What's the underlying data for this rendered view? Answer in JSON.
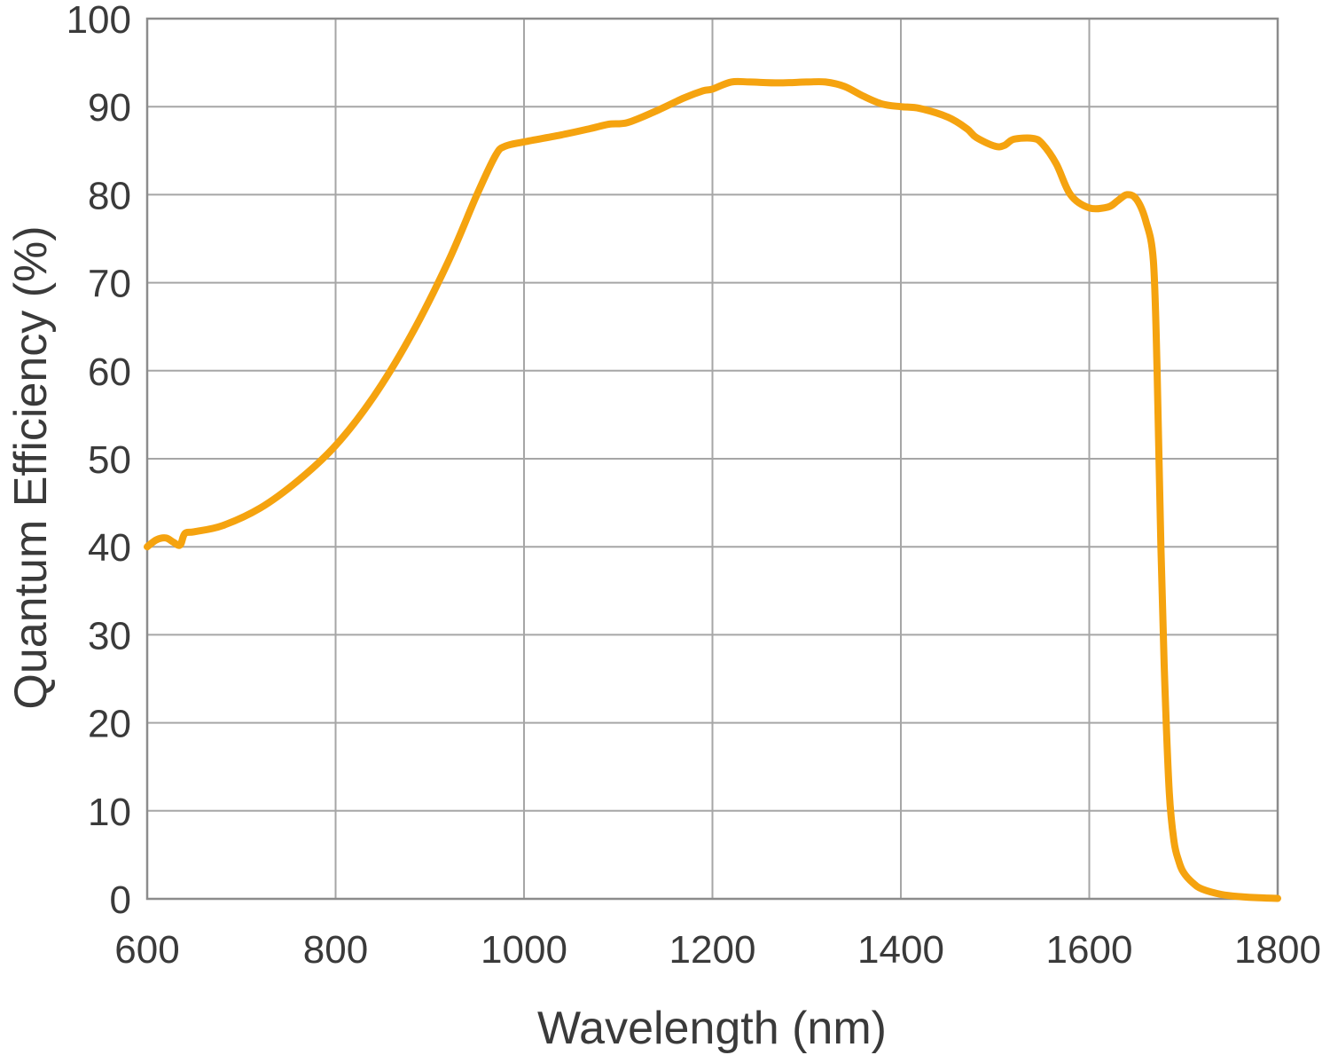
{
  "chart_data": {
    "type": "line",
    "title": "",
    "xlabel": "Wavelength (nm)",
    "ylabel": "Quantum Efficiency (%)",
    "xlim": [
      600,
      1800
    ],
    "ylim": [
      0,
      100
    ],
    "xticks": [
      600,
      800,
      1000,
      1200,
      1400,
      1600,
      1800
    ],
    "yticks": [
      0,
      10,
      20,
      30,
      40,
      50,
      60,
      70,
      80,
      90,
      100
    ],
    "grid": true,
    "line_color": "#f5a30f",
    "grid_color": "#a6a6a6",
    "frame_color": "#8c8c8c",
    "series": [
      {
        "x": [
          600,
          610,
          620,
          628,
          635,
          640,
          650,
          680,
          720,
          760,
          800,
          840,
          880,
          920,
          950,
          970,
          980,
          1000,
          1040,
          1070,
          1090,
          1110,
          1140,
          1170,
          1190,
          1200,
          1220,
          1240,
          1270,
          1300,
          1320,
          1340,
          1360,
          1380,
          1400,
          1420,
          1450,
          1470,
          1480,
          1500,
          1510,
          1520,
          1540,
          1550,
          1565,
          1580,
          1600,
          1620,
          1630,
          1640,
          1650,
          1660,
          1668,
          1672,
          1676,
          1680,
          1685,
          1690,
          1695,
          1700,
          1710,
          1720,
          1740,
          1760,
          1780,
          1800
        ],
        "y": [
          40,
          40.8,
          41,
          40.5,
          40.2,
          41.5,
          41.7,
          42.4,
          44.4,
          47.5,
          51.5,
          57,
          64,
          72.5,
          80,
          84.5,
          85.5,
          86,
          86.8,
          87.5,
          88,
          88.2,
          89.5,
          91,
          91.8,
          92,
          92.8,
          92.8,
          92.7,
          92.8,
          92.8,
          92.3,
          91.2,
          90.3,
          90,
          89.8,
          88.8,
          87.5,
          86.5,
          85.5,
          85.6,
          86.3,
          86.4,
          85.8,
          83.5,
          80,
          78.5,
          78.6,
          79.3,
          80,
          79.5,
          77,
          72.5,
          60,
          40,
          25,
          12,
          6.5,
          4.3,
          3,
          1.8,
          1.1,
          0.5,
          0.25,
          0.12,
          0.05
        ]
      }
    ]
  }
}
